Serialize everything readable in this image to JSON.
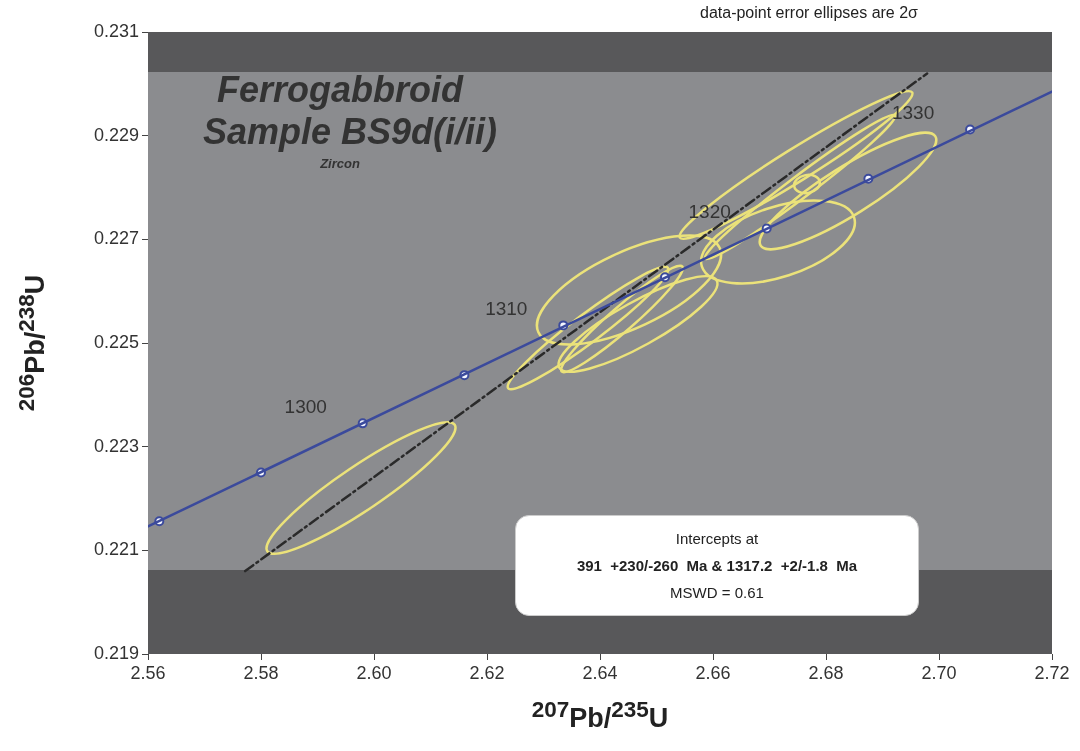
{
  "chart_data": {
    "type": "scatter",
    "title": "Ferrogabbroid",
    "subtitle": "Sample BS9d(i/ii)",
    "xlabel": "$^{207}$Pb/$^{235}$U",
    "ylabel": "$^{206}$Pb/$^{238}$U",
    "xlim": [
      2.56,
      2.72
    ],
    "ylim": [
      0.219,
      0.231
    ],
    "xticks": [
      2.56,
      2.58,
      {
        "value": 2.6,
        "label": "2.60"
      },
      2.62,
      2.64,
      2.66,
      2.68,
      {
        "value": 2.7,
        "label": "2.70"
      },
      2.72
    ],
    "yticks": [
      0.219,
      0.221,
      0.223,
      0.225,
      0.227,
      0.229,
      0.231
    ],
    "series": [
      {
        "type": "line",
        "color": "#3b4a9c",
        "marker": "none",
        "x": [
          2.56,
          2.72
        ],
        "values": [
          0.22146,
          0.22985
        ]
      },
      {
        "type": "scatter",
        "color": "#3b4a9c",
        "marker": "circle",
        "x": [
          2.562,
          2.58,
          2.598,
          2.616,
          2.6335,
          2.6515,
          2.6695,
          2.6875,
          2.7055
        ],
        "values": [
          0.22156,
          0.2225,
          0.22345,
          0.22438,
          0.22534,
          0.22627,
          0.22721,
          0.22817,
          0.22912
        ]
      },
      {
        "type": "line",
        "color": "#2a2a2a",
        "marker": "none",
        "line_style": "dashed",
        "x": [
          2.5772,
          2.6979
        ],
        "values": [
          0.2206,
          0.2302
        ]
      }
    ],
    "annotations": [
      "Zircon",
      "Intercepts at",
      "391  +230/-260  Ma & 1317.2  +2/-1.8  Ma",
      "MSWD = 0.61",
      "data-point error ellipses are 2σ",
      {
        "text": "1300",
        "x": 2.598,
        "y": 0.22345
      },
      {
        "text": "1310",
        "x": 2.6335,
        "y": 0.22534
      },
      {
        "text": "1320",
        "x": 2.6695,
        "y": 0.22721
      },
      {
        "text": "1330",
        "x": 2.7055,
        "y": 0.22912
      }
    ]
  }
}
